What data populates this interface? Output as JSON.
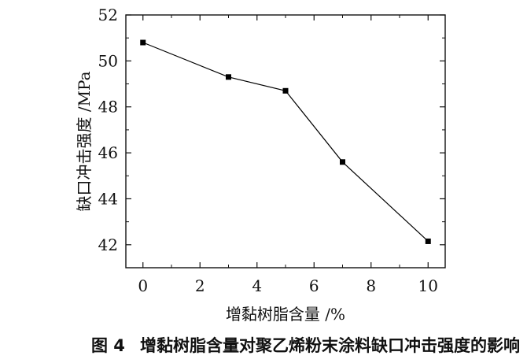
{
  "chart_data": {
    "type": "line",
    "xlabel": "增黏树脂含量 /%",
    "ylabel": "缺口冲击强度 /MPa",
    "xlim": [
      -0.6,
      10.6
    ],
    "ylim": [
      41,
      52
    ],
    "x_ticks": [
      0,
      2,
      4,
      6,
      8,
      10
    ],
    "y_ticks": [
      42,
      44,
      46,
      48,
      50,
      52
    ],
    "grid": false,
    "series": [
      {
        "x": [
          0,
          3,
          5,
          7,
          10
        ],
        "y": [
          50.8,
          49.3,
          48.7,
          45.6,
          42.15
        ],
        "marker": "square",
        "color": "#000000"
      }
    ]
  },
  "caption": {
    "number": "图 4",
    "text": "增黏树脂含量对聚乙烯粉末涂料缺口冲击强度的影响"
  }
}
